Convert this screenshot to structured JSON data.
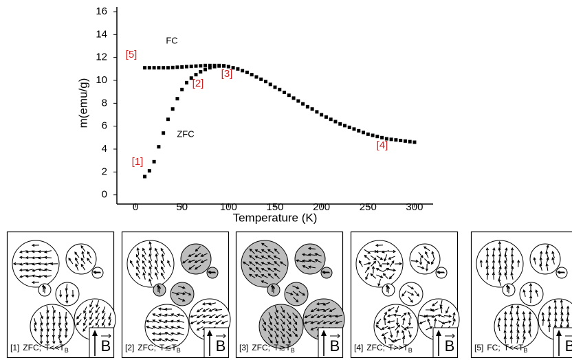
{
  "chart_data": {
    "type": "scatter",
    "xlabel": "Temperature (K)",
    "ylabel": "m(emu/g)",
    "xlim": [
      -20,
      320
    ],
    "ylim": [
      -0.8,
      16
    ],
    "xticks": [
      0,
      50,
      100,
      150,
      200,
      250,
      300
    ],
    "yticks": [
      0,
      2,
      4,
      6,
      8,
      10,
      12,
      14,
      16
    ],
    "series": [
      {
        "name": "FC",
        "color": "#000000",
        "x": [
          10,
          15,
          20,
          25,
          30,
          35,
          40,
          45,
          50,
          55,
          60,
          65,
          70,
          75,
          80,
          85,
          90,
          95,
          100,
          105,
          110,
          115,
          120,
          125,
          130,
          135,
          140,
          145,
          150,
          155,
          160,
          165,
          170,
          175,
          180,
          185,
          190,
          195,
          200,
          205,
          210,
          215,
          220,
          225,
          230,
          235,
          240,
          245,
          250,
          255,
          260,
          265,
          270,
          275,
          280,
          285,
          290,
          295,
          300
        ],
        "values": [
          11.1,
          11.1,
          11.1,
          11.1,
          11.1,
          11.1,
          11.12,
          11.15,
          11.17,
          11.2,
          11.22,
          11.25,
          11.27,
          11.3,
          11.3,
          11.3,
          11.3,
          11.28,
          11.2,
          11.1,
          11.0,
          10.85,
          10.7,
          10.5,
          10.3,
          10.1,
          9.9,
          9.65,
          9.4,
          9.2,
          8.95,
          8.7,
          8.45,
          8.2,
          7.95,
          7.7,
          7.5,
          7.25,
          7.0,
          6.8,
          6.6,
          6.4,
          6.2,
          6.05,
          5.9,
          5.75,
          5.6,
          5.45,
          5.3,
          5.2,
          5.1,
          5.0,
          4.9,
          4.85,
          4.8,
          4.75,
          4.7,
          4.65,
          4.6
        ]
      },
      {
        "name": "ZFC",
        "color": "#000000",
        "x": [
          10,
          15,
          20,
          25,
          30,
          35,
          40,
          45,
          50,
          55,
          60,
          65,
          70,
          75,
          80,
          85,
          90,
          95
        ],
        "values": [
          1.6,
          2.1,
          2.9,
          4.2,
          5.4,
          6.6,
          7.5,
          8.4,
          9.2,
          9.8,
          10.2,
          10.5,
          10.75,
          10.95,
          11.1,
          11.2,
          11.25,
          11.25
        ]
      }
    ],
    "annotations": [
      "[5]",
      "[2]",
      "[3]",
      "[1]",
      "[4]"
    ],
    "annotation_color": "#d42020"
  },
  "panels": [
    {
      "label": "[1]",
      "mode": "ZFC;",
      "temp": "T<<T",
      "sub": "B"
    },
    {
      "label": "[2]",
      "mode": "ZFC;",
      "temp": "T≲T",
      "sub": "B"
    },
    {
      "label": "[3]",
      "mode": "ZFC;",
      "temp": "T≳T",
      "sub": "B"
    },
    {
      "label": "[4]",
      "mode": "ZFC;",
      "temp": "T>>T",
      "sub": "B"
    },
    {
      "label": "[5]",
      "mode": "FC;",
      "temp": "T<<T",
      "sub": "B"
    }
  ],
  "field_label": "B"
}
